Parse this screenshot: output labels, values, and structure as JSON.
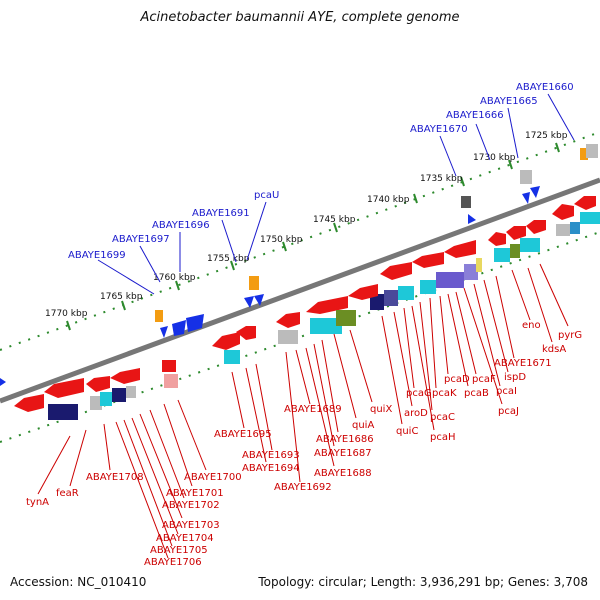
{
  "title": "Acinetobacter baumannii AYE, complete genome",
  "accession": "Accession: NC_010410",
  "topology": "Topology: circular; Length: 3,936,291 bp; Genes: 3,708",
  "colors": {
    "blue_label": "#1a1acc",
    "red_label": "#cc0000",
    "backbone": "#777777",
    "tick": "#2d8a2d"
  },
  "positions": [
    "1725 kbp",
    "1730 kbp",
    "1735 kbp",
    "1740 kbp",
    "1745 kbp",
    "1750 kbp",
    "1755 kbp",
    "1760 kbp",
    "1765 kbp",
    "1770 kbp"
  ],
  "upper_labels": [
    "ABAYE1660",
    "ABAYE1665",
    "ABAYE1666",
    "ABAYE1670",
    "pcaU",
    "ABAYE1691",
    "ABAYE1696",
    "ABAYE1697",
    "ABAYE1699"
  ],
  "lower_labels": [
    "pyrG",
    "kdsA",
    "eno",
    "ABAYE1671",
    "ispD",
    "pcaI",
    "pcaJ",
    "pcaF",
    "pcaB",
    "pcaD",
    "pcaK",
    "pcaC",
    "pcaH",
    "pcaG",
    "aroD",
    "quiC",
    "quiX",
    "quiA",
    "ABAYE1686",
    "ABAYE1687",
    "ABAYE1688",
    "ABAYE1689",
    "ABAYE1692",
    "ABAYE1693",
    "ABAYE1694",
    "ABAYE1695",
    "ABAYE1700",
    "ABAYE1701",
    "ABAYE1702",
    "ABAYE1703",
    "ABAYE1704",
    "ABAYE1705",
    "ABAYE1706",
    "ABAYE1708",
    "feaR",
    "tynA"
  ]
}
